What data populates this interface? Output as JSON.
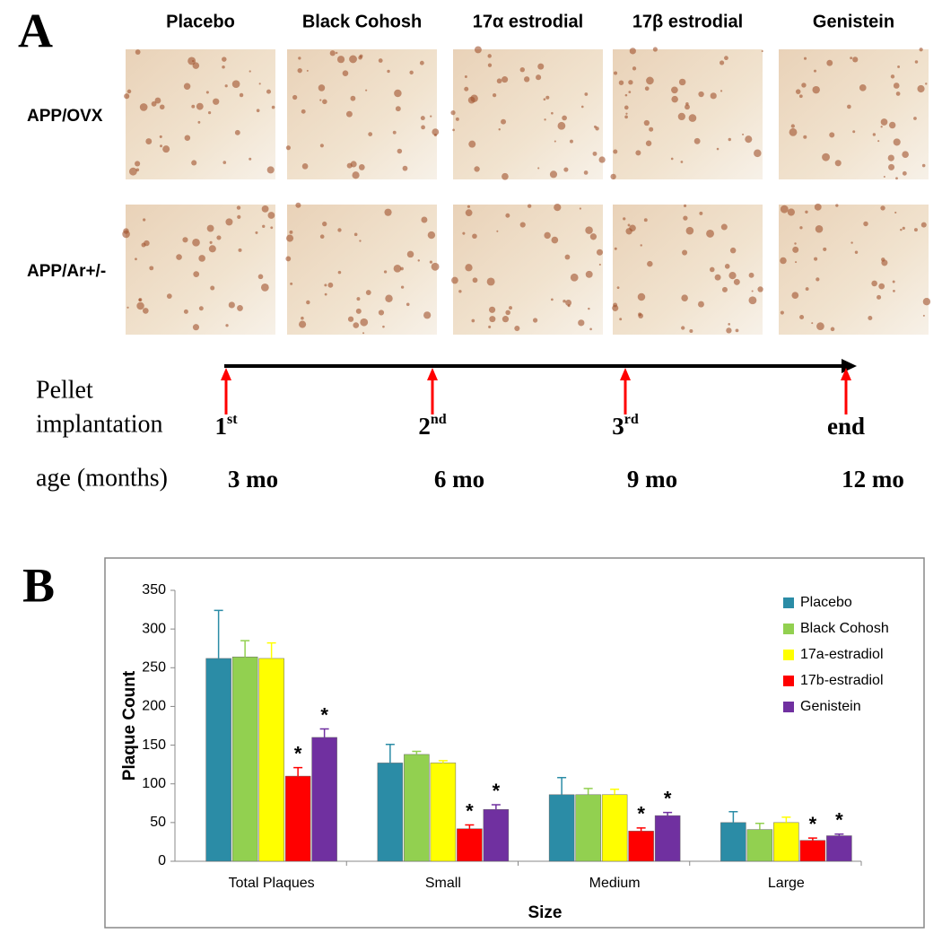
{
  "panel_a": {
    "label": "A",
    "columns": [
      "Placebo",
      "Black Cohosh",
      "17α estrodial",
      "17β estrodial",
      "Genistein"
    ],
    "rows": [
      "APP/OVX",
      "APP/Ar+/-"
    ],
    "timeline": {
      "labels": [
        "Pellet",
        "implantation",
        "age (months)"
      ],
      "points": [
        {
          "pellet": {
            "base": "1",
            "sup": "st"
          },
          "age": "3 mo"
        },
        {
          "pellet": {
            "base": "2",
            "sup": "nd"
          },
          "age": "6 mo"
        },
        {
          "pellet": {
            "base": "3",
            "sup": "rd"
          },
          "age": "9 mo"
        },
        {
          "pellet": {
            "base": "end"
          },
          "age": "12 mo"
        }
      ]
    }
  },
  "panel_b": {
    "label": "B"
  },
  "chart_data": {
    "type": "bar",
    "x_label": "Size",
    "y_label": "Plaque Count",
    "categories": [
      "Total Plaques",
      "Small",
      "Medium",
      "Large"
    ],
    "ylim": [
      0,
      350
    ],
    "yticks": [
      0,
      50,
      100,
      150,
      200,
      250,
      300,
      350
    ],
    "legend": "top-right",
    "series": [
      {
        "name": "Placebo",
        "color": "#2b8ca6",
        "values": [
          262,
          127,
          86,
          50
        ],
        "errors": [
          62,
          24,
          22,
          14
        ]
      },
      {
        "name": "Black Cohosh",
        "color": "#92d050",
        "values": [
          264,
          138,
          86,
          41
        ],
        "errors": [
          21,
          4,
          8,
          8
        ]
      },
      {
        "name": "17a-estradiol",
        "color": "#ffff00",
        "values": [
          262,
          127,
          86,
          50
        ],
        "errors": [
          20,
          3,
          7,
          7
        ]
      },
      {
        "name": "17b-estradiol",
        "color": "#ff0000",
        "values": [
          110,
          42,
          39,
          27
        ],
        "errors": [
          11,
          5,
          4,
          3
        ],
        "annotations": [
          "*",
          "*",
          "*",
          "*"
        ]
      },
      {
        "name": "Genistein",
        "color": "#7030a0",
        "values": [
          160,
          67,
          59,
          33
        ],
        "errors": [
          11,
          6,
          4,
          2
        ],
        "annotations": [
          "*",
          "*",
          "*",
          "*"
        ]
      }
    ]
  }
}
